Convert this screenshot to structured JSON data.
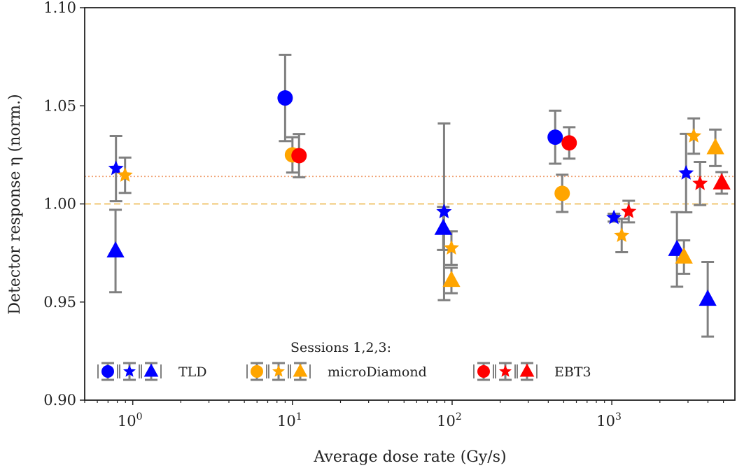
{
  "chart_data": {
    "type": "scatter",
    "title": "",
    "xlabel": "Average dose rate (Gy/s)",
    "ylabel": "Detector response η (norm.)",
    "xscale": "log",
    "xlim": [
      0.5,
      5900
    ],
    "ylim": [
      0.9,
      1.1
    ],
    "xticks": [
      {
        "value": 1,
        "base": "10",
        "exp": "0"
      },
      {
        "value": 10,
        "base": "10",
        "exp": "1"
      },
      {
        "value": 100,
        "base": "10",
        "exp": "2"
      },
      {
        "value": 1000,
        "base": "10",
        "exp": "3"
      }
    ],
    "yticks": [
      {
        "value": 0.9,
        "label": "0.90"
      },
      {
        "value": 0.95,
        "label": "0.95"
      },
      {
        "value": 1.0,
        "label": "1.00"
      },
      {
        "value": 1.05,
        "label": "1.05"
      },
      {
        "value": 1.1,
        "label": "1.10"
      }
    ],
    "grid": false,
    "reference_lines": [
      {
        "name": "dotted-reference",
        "y": 1.014,
        "style": "dotted",
        "color": "#f0a070"
      },
      {
        "name": "dashed-reference",
        "y": 1.0,
        "style": "dashed",
        "color": "#f0c060"
      }
    ],
    "error_bar_color": "#808080",
    "legend": {
      "title": "Sessions 1,2,3:",
      "placement": "bottom-center",
      "session_markers": [
        "circle",
        "star",
        "triangle"
      ],
      "entries": [
        {
          "label": "TLD",
          "color": "#0000ff"
        },
        {
          "label": "microDiamond",
          "color": "#ffa500"
        },
        {
          "label": "EBT3",
          "color": "#ff0000"
        }
      ]
    },
    "series": [
      {
        "name": "TLD",
        "color": "#0000ff",
        "points": [
          {
            "session": 1,
            "marker": "circle",
            "x": 9.0,
            "y": 1.054,
            "err": 0.022
          },
          {
            "session": 1,
            "marker": "circle",
            "x": 442,
            "y": 1.034,
            "err": 0.0135
          },
          {
            "session": 2,
            "marker": "star",
            "x": 0.785,
            "y": 1.018,
            "err": 0.0166
          },
          {
            "session": 2,
            "marker": "star",
            "x": 89,
            "y": 0.996,
            "err": 0.045
          },
          {
            "session": 2,
            "marker": "star",
            "x": 1031,
            "y": 0.993,
            "err": 0.002
          },
          {
            "session": 2,
            "marker": "star",
            "x": 2918,
            "y": 1.0157,
            "err": 0.02
          },
          {
            "session": 3,
            "marker": "triangle",
            "x": 0.78,
            "y": 0.976,
            "err": 0.021
          },
          {
            "session": 3,
            "marker": "triangle",
            "x": 88,
            "y": 0.9875,
            "err": 0.011
          },
          {
            "session": 3,
            "marker": "triangle",
            "x": 2558,
            "y": 0.9768,
            "err": 0.019
          },
          {
            "session": 3,
            "marker": "triangle",
            "x": 3986,
            "y": 0.9514,
            "err": 0.019
          }
        ]
      },
      {
        "name": "microDiamond",
        "color": "#ffa500",
        "points": [
          {
            "session": 1,
            "marker": "circle",
            "x": 10,
            "y": 1.025,
            "err": 0.009
          },
          {
            "session": 1,
            "marker": "circle",
            "x": 489,
            "y": 1.0054,
            "err": 0.0095
          },
          {
            "session": 2,
            "marker": "star",
            "x": 0.895,
            "y": 1.0146,
            "err": 0.009
          },
          {
            "session": 2,
            "marker": "star",
            "x": 99,
            "y": 0.9775,
            "err": 0.0085
          },
          {
            "session": 2,
            "marker": "star",
            "x": 1153,
            "y": 0.9839,
            "err": 0.0085
          },
          {
            "session": 2,
            "marker": "star",
            "x": 3259,
            "y": 1.0346,
            "err": 0.009
          },
          {
            "session": 3,
            "marker": "triangle",
            "x": 99,
            "y": 0.961,
            "err": 0.0065
          },
          {
            "session": 3,
            "marker": "triangle",
            "x": 2830,
            "y": 0.9729,
            "err": 0.0085
          },
          {
            "session": 3,
            "marker": "triangle",
            "x": 4453,
            "y": 1.0286,
            "err": 0.0093
          }
        ]
      },
      {
        "name": "EBT3",
        "color": "#ff0000",
        "points": [
          {
            "session": 1,
            "marker": "circle",
            "x": 11.0,
            "y": 1.0246,
            "err": 0.011
          },
          {
            "session": 1,
            "marker": "circle",
            "x": 541,
            "y": 1.0311,
            "err": 0.008
          },
          {
            "session": 2,
            "marker": "star",
            "x": 1276,
            "y": 0.9961,
            "err": 0.0055
          },
          {
            "session": 2,
            "marker": "star",
            "x": 3568,
            "y": 1.0104,
            "err": 0.011
          },
          {
            "session": 3,
            "marker": "triangle",
            "x": 4879,
            "y": 1.0107,
            "err": 0.0055
          }
        ]
      }
    ]
  }
}
